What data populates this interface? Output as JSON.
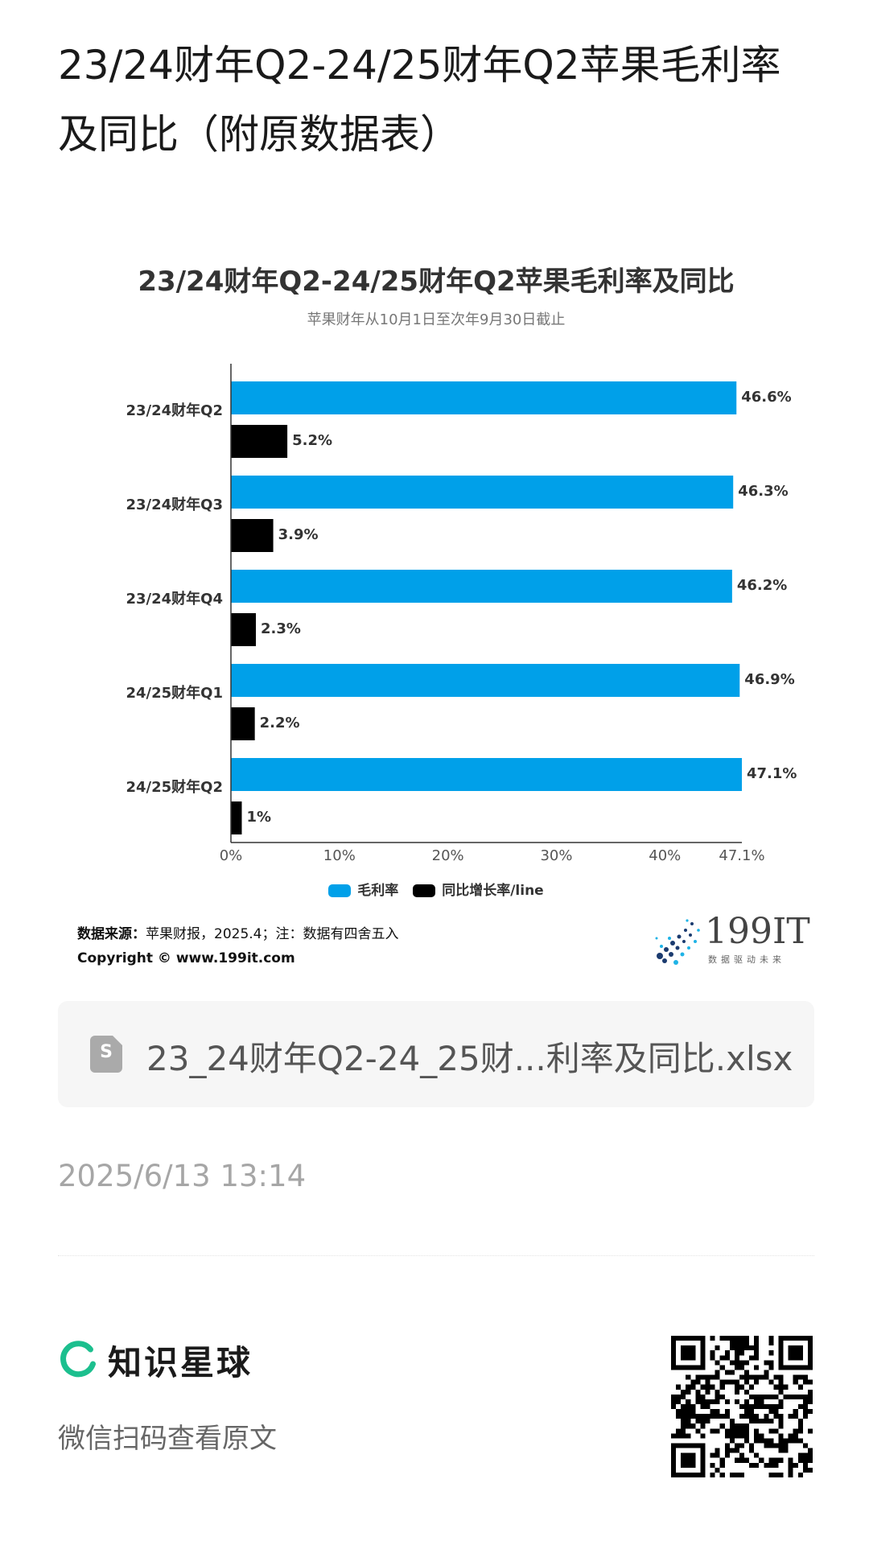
{
  "page": {
    "title": "23/24财年Q2-24/25财年Q2苹果毛利率及同比（附原数据表）"
  },
  "chart_data": {
    "type": "bar",
    "orientation": "horizontal",
    "title": "23/24财年Q2-24/25财年Q2苹果毛利率及同比",
    "subtitle": "苹果财年从10月1日至次年9月30日截止",
    "categories": [
      "23/24财年Q2",
      "23/24财年Q3",
      "23/24财年Q4",
      "24/25财年Q1",
      "24/25财年Q2"
    ],
    "series": [
      {
        "name": "毛利率",
        "color": "#00a0e9",
        "values": [
          46.6,
          46.3,
          46.2,
          46.9,
          47.1
        ],
        "labels": [
          "46.6%",
          "46.3%",
          "46.2%",
          "46.9%",
          "47.1%"
        ]
      },
      {
        "name": "同比增长率/line",
        "color": "#000000",
        "values": [
          5.2,
          3.9,
          2.3,
          2.2,
          1.0
        ],
        "labels": [
          "5.2%",
          "3.9%",
          "2.3%",
          "2.2%",
          "1%"
        ]
      }
    ],
    "xlim": [
      0,
      47.1
    ],
    "xticks": [
      0,
      10,
      20,
      30,
      40,
      47.1
    ],
    "xtick_labels": [
      "0%",
      "10%",
      "20%",
      "30%",
      "40%",
      "47.1%"
    ],
    "grid": false,
    "legend_position": "bottom"
  },
  "chart_footer": {
    "source_label": "数据来源：",
    "source_text": "苹果财报，2025.4；注：数据有四舍五入",
    "copyright": "Copyright © www.199it.com",
    "logo_text": "199IT",
    "logo_tagline": "数据驱动未来"
  },
  "attachment": {
    "icon": "spreadsheet-file-icon",
    "icon_letter": "S",
    "file_name": "23_24财年Q2-24_25财...利率及同比.xlsx"
  },
  "meta": {
    "timestamp": "2025/6/13 13:14"
  },
  "brand": {
    "icon": "zhishi-xingqiu-logo-icon",
    "name": "知识星球",
    "hint": "微信扫码查看原文",
    "accent_color": "#1cbf8e"
  }
}
